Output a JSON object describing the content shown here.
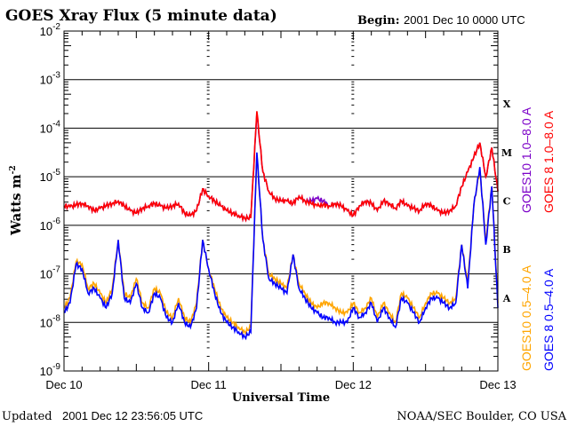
{
  "header": {
    "title": "GOES Xray Flux (5 minute data)",
    "begin_label": "Begin:",
    "begin_value": "2001 Dec 10 0000 UTC"
  },
  "footer": {
    "updated_label": "Updated",
    "updated_value": "2001 Dec 12 23:56:05 UTC",
    "credit": "NOAA/SEC Boulder, CO USA"
  },
  "chart_data": {
    "type": "line",
    "title": "GOES Xray Flux (5 minute data)",
    "xlabel": "Universal Time",
    "ylabel": "Watts m",
    "ylabel_exp": "-2",
    "yscale": "log",
    "ylim_log10": [
      -9,
      -2
    ],
    "xlim_hours": [
      0,
      72
    ],
    "x_ticks": [
      {
        "hour": 0,
        "label": "Dec 10"
      },
      {
        "hour": 24,
        "label": "Dec 11"
      },
      {
        "hour": 48,
        "label": "Dec 12"
      },
      {
        "hour": 72,
        "label": "Dec 13"
      }
    ],
    "y_ticks": [
      {
        "exp": -2,
        "base": "10",
        "sup": "-2"
      },
      {
        "exp": -3,
        "base": "10",
        "sup": "-3"
      },
      {
        "exp": -4,
        "base": "10",
        "sup": "-4"
      },
      {
        "exp": -5,
        "base": "10",
        "sup": "-5"
      },
      {
        "exp": -6,
        "base": "10",
        "sup": "-6"
      },
      {
        "exp": -7,
        "base": "10",
        "sup": "-7"
      },
      {
        "exp": -8,
        "base": "10",
        "sup": "-8"
      },
      {
        "exp": -9,
        "base": "10",
        "sup": "-9"
      }
    ],
    "flare_classes": [
      {
        "label": "X",
        "exp": -3.5
      },
      {
        "label": "M",
        "exp": -4.5
      },
      {
        "label": "C",
        "exp": -5.5
      },
      {
        "label": "B",
        "exp": -6.5
      },
      {
        "label": "A",
        "exp": -7.5
      }
    ],
    "grid": true,
    "x_step_hours": 1,
    "series": [
      {
        "name": "GOES10 0.5-4.0 A",
        "label": "GOES10 0.5–4.0 A",
        "color": "#ffa500",
        "log10_values": [
          -7.7,
          -7.5,
          -6.75,
          -6.8,
          -7.3,
          -7.2,
          -7.4,
          -7.6,
          -7.3,
          -6.3,
          -7.4,
          -7.5,
          -7.1,
          -7.6,
          -7.7,
          -7.3,
          -7.4,
          -7.8,
          -7.9,
          -7.5,
          -7.9,
          -8.0,
          -7.6,
          -6.3,
          -6.9,
          -7.3,
          -7.7,
          -7.9,
          -8.0,
          -8.1,
          -8.2,
          -8.1,
          -4.55,
          -6.3,
          -7.0,
          -7.1,
          -7.2,
          -7.3,
          -6.6,
          -7.2,
          -7.4,
          -7.6,
          -7.7,
          -7.6,
          -7.6,
          -7.7,
          -7.8,
          -7.8,
          -7.6,
          -7.8,
          -7.7,
          -7.5,
          -7.9,
          -7.6,
          -7.8,
          -8.0,
          -7.4,
          -7.5,
          -7.7,
          -7.9,
          -7.6,
          -7.4,
          -7.4,
          -7.5,
          -7.6,
          -7.5,
          -6.4,
          -7.2,
          -5.6,
          -4.85,
          -6.3,
          -5.2,
          -7.6
        ]
      },
      {
        "name": "GOES 8 0.5-4.0 A",
        "label": "GOES 8 0.5–4.0 A",
        "color": "#0000ff",
        "log10_values": [
          -7.8,
          -7.6,
          -6.8,
          -6.9,
          -7.4,
          -7.3,
          -7.5,
          -7.7,
          -7.4,
          -6.3,
          -7.5,
          -7.6,
          -7.2,
          -7.7,
          -7.8,
          -7.4,
          -7.5,
          -7.9,
          -8.0,
          -7.6,
          -8.0,
          -8.1,
          -7.7,
          -6.3,
          -6.9,
          -7.4,
          -7.8,
          -8.0,
          -8.1,
          -8.2,
          -8.3,
          -8.2,
          -4.5,
          -6.3,
          -7.1,
          -7.2,
          -7.3,
          -7.4,
          -6.6,
          -7.3,
          -7.5,
          -7.7,
          -7.8,
          -7.9,
          -7.9,
          -8.0,
          -8.0,
          -8.0,
          -7.7,
          -7.9,
          -7.8,
          -7.6,
          -8.0,
          -7.7,
          -7.9,
          -8.1,
          -7.5,
          -7.6,
          -7.8,
          -8.0,
          -7.7,
          -7.5,
          -7.5,
          -7.6,
          -7.7,
          -7.6,
          -6.4,
          -7.3,
          -5.6,
          -4.8,
          -6.4,
          -5.2,
          -7.7
        ]
      },
      {
        "name": "GOES10 1.0-8.0 A",
        "label": "GOES10 1.0–8.0 A",
        "color": "#7b00c8",
        "log10_values": [
          -5.6,
          -5.62,
          -5.58,
          -5.55,
          -5.6,
          -5.7,
          -5.65,
          -5.6,
          -5.55,
          -5.5,
          -5.6,
          -5.7,
          -5.75,
          -5.65,
          -5.6,
          -5.55,
          -5.6,
          -5.65,
          -5.6,
          -5.55,
          -5.75,
          -5.8,
          -5.7,
          -5.25,
          -5.4,
          -5.5,
          -5.6,
          -5.7,
          -5.75,
          -5.8,
          -5.85,
          -5.85,
          -3.7,
          -4.9,
          -5.3,
          -5.45,
          -5.5,
          -5.5,
          -5.55,
          -5.4,
          -5.5,
          -5.5,
          -5.45,
          -5.5,
          -5.6,
          -5.55,
          -5.6,
          -5.7,
          -5.8,
          -5.6,
          -5.5,
          -5.55,
          -5.7,
          -5.5,
          -5.55,
          -5.65,
          -5.5,
          -5.6,
          -5.65,
          -5.7,
          -5.55,
          -5.6,
          -5.7,
          -5.75,
          -5.7,
          -5.6,
          -5.2,
          -4.9,
          -4.6,
          -4.3,
          -5.0,
          -4.4,
          -5.3
        ]
      },
      {
        "name": "GOES 8 1.0-8.0 A",
        "label": "GOES 8 1.0–8.0 A",
        "color": "#ff0000",
        "log10_values": [
          -5.6,
          -5.62,
          -5.58,
          -5.55,
          -5.6,
          -5.7,
          -5.65,
          -5.6,
          -5.55,
          -5.5,
          -5.6,
          -5.7,
          -5.75,
          -5.65,
          -5.6,
          -5.55,
          -5.6,
          -5.65,
          -5.6,
          -5.55,
          -5.75,
          -5.8,
          -5.7,
          -5.25,
          -5.4,
          -5.5,
          -5.6,
          -5.7,
          -5.75,
          -5.8,
          -5.85,
          -5.85,
          -3.65,
          -4.9,
          -5.3,
          -5.45,
          -5.5,
          -5.5,
          -5.55,
          -5.4,
          -5.5,
          -5.55,
          -5.6,
          -5.58,
          -5.6,
          -5.55,
          -5.6,
          -5.7,
          -5.8,
          -5.6,
          -5.5,
          -5.55,
          -5.7,
          -5.5,
          -5.55,
          -5.65,
          -5.5,
          -5.6,
          -5.65,
          -5.7,
          -5.55,
          -5.6,
          -5.7,
          -5.75,
          -5.7,
          -5.6,
          -5.2,
          -4.9,
          -4.6,
          -4.3,
          -5.0,
          -4.4,
          -5.3
        ]
      }
    ]
  }
}
